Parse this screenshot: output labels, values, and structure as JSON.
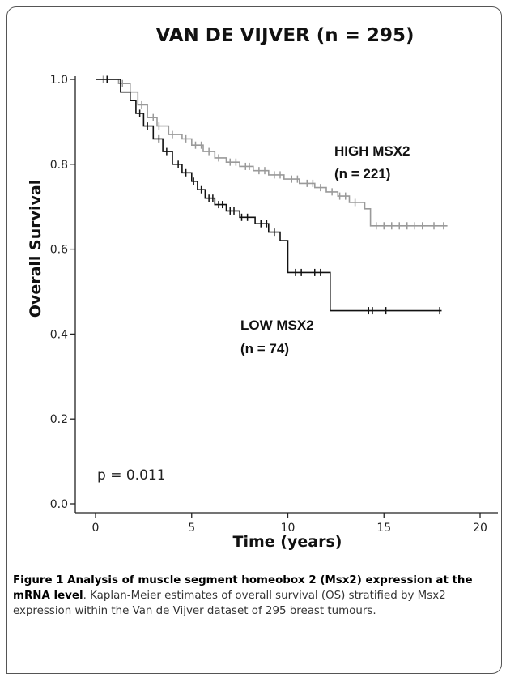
{
  "chart_data": {
    "type": "line",
    "title": "VAN DE VIJVER (n = 295)",
    "xlabel": "Time (years)",
    "ylabel": "Overall Survival",
    "xlim": [
      0,
      20
    ],
    "ylim": [
      0,
      1.0
    ],
    "x_ticks": [
      "0",
      "5",
      "10",
      "15",
      "20"
    ],
    "y_ticks": [
      "0.0",
      "0.2",
      "0.4",
      "0.6",
      "0.8",
      "1.0"
    ],
    "grid": false,
    "curve_style": "step",
    "series": [
      {
        "name": "HIGH MSX2",
        "count_label": "(n = 221)",
        "color": "#9a9a9a",
        "x": [
          0,
          1.2,
          1.8,
          2.2,
          2.7,
          3.2,
          3.8,
          4.5,
          5.0,
          5.6,
          6.2,
          6.8,
          7.5,
          8.2,
          9.0,
          9.8,
          10.6,
          11.4,
          12.0,
          12.6,
          13.2,
          14.0,
          14.3,
          18.3
        ],
        "y": [
          1.0,
          0.99,
          0.97,
          0.94,
          0.91,
          0.89,
          0.87,
          0.86,
          0.845,
          0.83,
          0.815,
          0.805,
          0.795,
          0.785,
          0.775,
          0.765,
          0.755,
          0.745,
          0.735,
          0.725,
          0.71,
          0.695,
          0.655,
          0.655
        ],
        "censor_x": [
          0.4,
          1.4,
          2.4,
          3.0,
          3.3,
          4.0,
          4.7,
          5.2,
          5.5,
          5.9,
          6.4,
          7.0,
          7.3,
          7.8,
          8.0,
          8.5,
          8.8,
          9.3,
          9.6,
          10.2,
          10.5,
          11.0,
          11.3,
          11.7,
          12.3,
          12.7,
          13.0,
          13.5,
          14.6,
          15.0,
          15.4,
          15.8,
          16.2,
          16.6,
          17.0,
          17.6,
          18.1
        ]
      },
      {
        "name": "LOW MSX2",
        "count_label": "(n = 74)",
        "color": "#111111",
        "x": [
          0,
          1.3,
          1.8,
          2.1,
          2.5,
          3.0,
          3.5,
          4.0,
          4.5,
          5.0,
          5.3,
          5.7,
          6.2,
          6.8,
          7.5,
          8.3,
          9.0,
          9.6,
          10.0,
          12.2,
          18.0
        ],
        "y": [
          1.0,
          0.97,
          0.95,
          0.92,
          0.89,
          0.86,
          0.83,
          0.8,
          0.78,
          0.76,
          0.74,
          0.72,
          0.705,
          0.69,
          0.675,
          0.66,
          0.64,
          0.62,
          0.545,
          0.455,
          0.455
        ],
        "censor_x": [
          0.6,
          2.3,
          2.7,
          3.3,
          3.7,
          4.3,
          4.7,
          5.1,
          5.5,
          5.9,
          6.1,
          6.4,
          6.6,
          7.0,
          7.2,
          7.6,
          7.9,
          8.6,
          8.9,
          9.3,
          10.4,
          10.7,
          11.4,
          11.7,
          14.2,
          14.4,
          15.1,
          17.9
        ]
      }
    ],
    "annotations": {
      "p_value": "p = 0.011"
    }
  },
  "caption": {
    "bold": "Figure 1 Analysis of muscle segment homeobox 2 (Msx2) expression at the mRNA level",
    "text": ". Kaplan-Meier estimates of overall survival (OS) stratified by Msx2 expression within the Van de Vijver dataset of 295 breast tumours."
  }
}
